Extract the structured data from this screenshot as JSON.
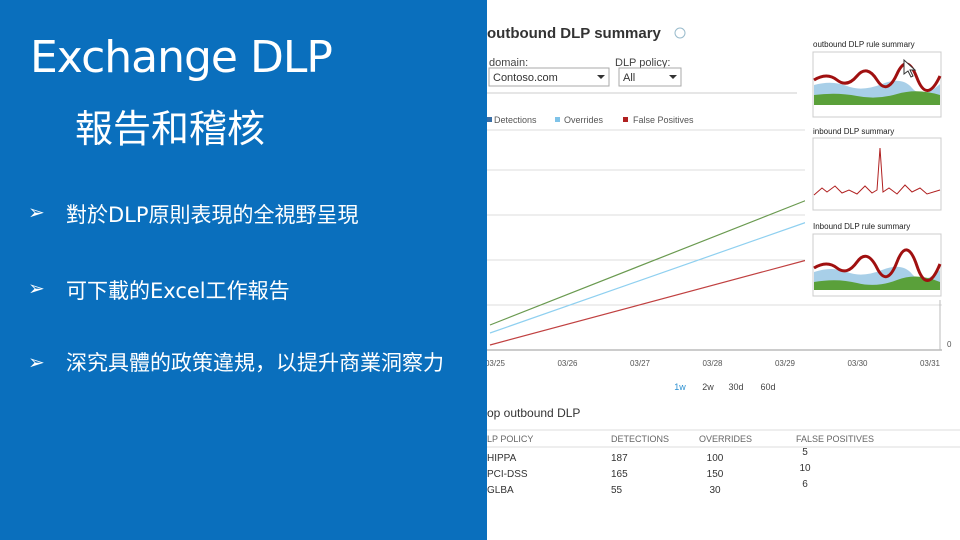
{
  "slide": {
    "title": "Exchange DLP",
    "subtitle": "報告和稽核",
    "bullets": [
      "對於DLP原則表現的全視野呈現",
      "可下載的Excel工作報告",
      "深究具體的政策違規，以提升商業洞察力"
    ]
  },
  "screenshot": {
    "heading": "outbound DLP summary",
    "filters": [
      {
        "label": "domain:",
        "value": "Contoso.com"
      },
      {
        "label": "DLP policy:",
        "value": "All"
      }
    ],
    "legend": [
      "Detections",
      "Overrides",
      "False Positives"
    ],
    "dates": [
      "03/25",
      "03/26",
      "03/27",
      "03/28",
      "03/29",
      "03/30",
      "03/31"
    ],
    "axis_zero": "0",
    "ranges": [
      "1w",
      "2w",
      "30d",
      "60d"
    ],
    "thumbnails": [
      "outbound DLP rule summary",
      "inbound DLP summary",
      "Inbound DLP rule summary"
    ],
    "table": {
      "title": "op outbound DLP",
      "headers": [
        "LP POLICY",
        "DETECTIONS",
        "OVERRIDES",
        "FALSE POSITIVES"
      ],
      "rows": [
        [
          "HIPPA",
          187,
          100,
          5
        ],
        [
          "PCI-DSS",
          165,
          150,
          10
        ],
        [
          "GLBA",
          55,
          30,
          6
        ]
      ]
    }
  }
}
